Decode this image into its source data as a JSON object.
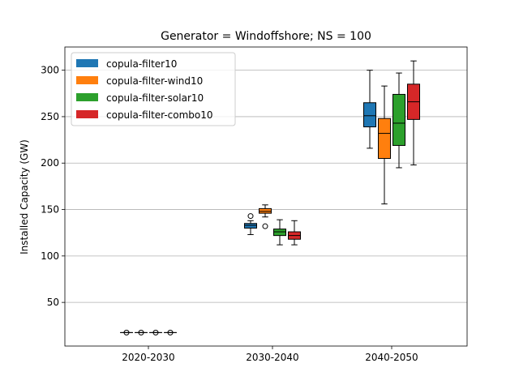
{
  "chart_data": {
    "type": "boxplot",
    "title": "Generator = Windoffshore; NS = 100",
    "xlabel": "",
    "ylabel": "Installed Capacity (GW)",
    "ylim": [
      3,
      325
    ],
    "yticks": [
      50,
      100,
      150,
      200,
      250,
      300
    ],
    "grid": "y",
    "legend_position": "top-left",
    "categories": [
      "2020-2030",
      "2030-2040",
      "2040-2050"
    ],
    "series": [
      {
        "name": "copula-filter10",
        "color": "#1f77b4",
        "boxes": [
          {
            "whislo": 17.5,
            "q1": 17.5,
            "med": 17.5,
            "q3": 17.5,
            "whishi": 17.5,
            "fliers": [
              17.5
            ]
          },
          {
            "whislo": 123,
            "q1": 130,
            "med": 133,
            "q3": 135,
            "whishi": 138,
            "fliers": [
              143
            ]
          },
          {
            "whislo": 216,
            "q1": 239,
            "med": 251,
            "q3": 265,
            "whishi": 300,
            "fliers": []
          }
        ]
      },
      {
        "name": "copula-filter-wind10",
        "color": "#ff7f0e",
        "boxes": [
          {
            "whislo": 17.5,
            "q1": 17.5,
            "med": 17.5,
            "q3": 17.5,
            "whishi": 17.5,
            "fliers": [
              17.5
            ]
          },
          {
            "whislo": 142,
            "q1": 146,
            "med": 148,
            "q3": 151,
            "whishi": 155,
            "fliers": [
              132
            ]
          },
          {
            "whislo": 156,
            "q1": 205,
            "med": 232,
            "q3": 248,
            "whishi": 283,
            "fliers": []
          }
        ]
      },
      {
        "name": "copula-filter-solar10",
        "color": "#2ca02c",
        "boxes": [
          {
            "whislo": 17.5,
            "q1": 17.5,
            "med": 17.5,
            "q3": 17.5,
            "whishi": 17.5,
            "fliers": [
              17.5
            ]
          },
          {
            "whislo": 112,
            "q1": 122,
            "med": 126,
            "q3": 129,
            "whishi": 139,
            "fliers": []
          },
          {
            "whislo": 195,
            "q1": 219,
            "med": 243,
            "q3": 274,
            "whishi": 297,
            "fliers": []
          }
        ]
      },
      {
        "name": "copula-filter-combo10",
        "color": "#d62728",
        "boxes": [
          {
            "whislo": 17.5,
            "q1": 17.5,
            "med": 17.5,
            "q3": 17.5,
            "whishi": 17.5,
            "fliers": [
              17.5
            ]
          },
          {
            "whislo": 112,
            "q1": 118,
            "med": 122,
            "q3": 126,
            "whishi": 138,
            "fliers": []
          },
          {
            "whislo": 198,
            "q1": 247,
            "med": 266,
            "q3": 285,
            "whishi": 310,
            "fliers": []
          }
        ]
      }
    ]
  }
}
